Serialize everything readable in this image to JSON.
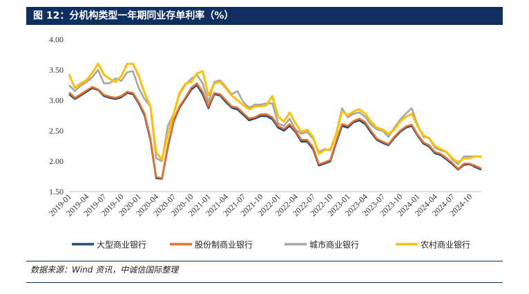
{
  "header": {
    "title": "图 12：分机构类型一年期同业存单利率（%）"
  },
  "footer": {
    "source": "数据来源：Wind 资讯，中诚信国际整理"
  },
  "chart_data": {
    "type": "line",
    "title": "分机构类型一年期同业存单利率（%）",
    "ylim": [
      1.5,
      4.0
    ],
    "yticks": [
      "4.00",
      "3.50",
      "3.00",
      "2.50",
      "2.00",
      "1.50"
    ],
    "ytick_values": [
      4.0,
      3.5,
      3.0,
      2.5,
      2.0,
      1.5
    ],
    "xtick_labels": [
      "2019-01",
      "2019-04",
      "2019-07",
      "2019-10",
      "2020-01",
      "2020-04",
      "2020-07",
      "2020-10",
      "2021-01",
      "2021-04",
      "2021-07",
      "2021-10",
      "2022-01",
      "2022-04",
      "2022-07",
      "2022-10",
      "2023-01",
      "2023-04",
      "2023-07",
      "2023-10",
      "2024-01",
      "2024-04",
      "2024-07",
      "2024-10"
    ],
    "n_points": 72,
    "series": [
      {
        "name": "大型商业银行",
        "color": "#1f4e79",
        "values": [
          3.1,
          3.02,
          3.08,
          3.14,
          3.2,
          3.17,
          3.07,
          3.04,
          3.02,
          3.05,
          3.12,
          3.1,
          2.95,
          2.75,
          2.35,
          1.72,
          1.71,
          2.22,
          2.65,
          2.88,
          3.02,
          3.17,
          3.25,
          3.1,
          2.87,
          3.1,
          3.08,
          2.97,
          2.88,
          2.85,
          2.76,
          2.67,
          2.7,
          2.74,
          2.74,
          2.69,
          2.55,
          2.5,
          2.58,
          2.48,
          2.32,
          2.32,
          2.2,
          1.93,
          1.96,
          2.0,
          2.3,
          2.58,
          2.55,
          2.64,
          2.67,
          2.61,
          2.47,
          2.35,
          2.3,
          2.26,
          2.38,
          2.48,
          2.55,
          2.58,
          2.42,
          2.29,
          2.24,
          2.13,
          2.1,
          2.03,
          1.95,
          1.86,
          1.94,
          1.95,
          1.9,
          1.86
        ]
      },
      {
        "name": "股份制商业银行",
        "color": "#e8702a",
        "values": [
          3.13,
          3.04,
          3.1,
          3.16,
          3.22,
          3.18,
          3.09,
          3.06,
          3.04,
          3.07,
          3.14,
          3.12,
          2.97,
          2.78,
          2.38,
          1.74,
          1.72,
          2.25,
          2.67,
          2.9,
          3.04,
          3.2,
          3.28,
          3.14,
          2.9,
          3.12,
          3.1,
          3.0,
          2.9,
          2.88,
          2.79,
          2.7,
          2.72,
          2.77,
          2.77,
          2.72,
          2.58,
          2.53,
          2.61,
          2.5,
          2.35,
          2.35,
          2.23,
          1.95,
          1.98,
          2.02,
          2.33,
          2.61,
          2.58,
          2.66,
          2.7,
          2.64,
          2.5,
          2.37,
          2.32,
          2.28,
          2.4,
          2.5,
          2.57,
          2.6,
          2.44,
          2.31,
          2.26,
          2.15,
          2.12,
          2.05,
          1.97,
          1.87,
          1.96,
          1.96,
          1.92,
          1.88
        ]
      },
      {
        "name": "城市商业银行",
        "color": "#a6a6a6",
        "values": [
          3.25,
          3.15,
          3.24,
          3.3,
          3.38,
          3.5,
          3.28,
          3.28,
          3.36,
          3.32,
          3.46,
          3.48,
          3.2,
          3.02,
          2.9,
          2.05,
          2.0,
          2.58,
          2.77,
          3.1,
          3.25,
          3.35,
          3.42,
          3.28,
          2.97,
          3.3,
          3.33,
          3.22,
          3.1,
          3.15,
          2.97,
          2.88,
          2.93,
          2.93,
          2.95,
          2.95,
          2.62,
          2.58,
          2.7,
          2.52,
          2.45,
          2.48,
          2.37,
          2.15,
          2.2,
          2.18,
          2.45,
          2.87,
          2.72,
          2.78,
          2.8,
          2.73,
          2.6,
          2.52,
          2.5,
          2.4,
          2.55,
          2.68,
          2.78,
          2.87,
          2.6,
          2.4,
          2.38,
          2.22,
          2.18,
          2.15,
          2.03,
          1.95,
          2.08,
          2.08,
          2.08,
          2.07
        ]
      },
      {
        "name": "农村商业银行",
        "color": "#ffc000",
        "values": [
          3.43,
          3.2,
          3.28,
          3.33,
          3.45,
          3.6,
          3.42,
          3.35,
          3.3,
          3.4,
          3.6,
          3.6,
          3.4,
          3.12,
          2.9,
          2.15,
          2.02,
          2.45,
          2.77,
          3.12,
          3.27,
          3.3,
          3.44,
          3.48,
          3.08,
          3.28,
          3.3,
          3.2,
          3.08,
          3.0,
          2.92,
          2.85,
          2.9,
          2.9,
          2.92,
          3.07,
          2.73,
          2.65,
          2.8,
          2.62,
          2.48,
          2.52,
          2.4,
          2.12,
          2.18,
          2.2,
          2.45,
          2.82,
          2.75,
          2.82,
          2.85,
          2.78,
          2.65,
          2.55,
          2.52,
          2.45,
          2.52,
          2.65,
          2.73,
          2.78,
          2.58,
          2.42,
          2.38,
          2.25,
          2.2,
          2.15,
          2.05,
          1.98,
          2.05,
          2.05,
          2.08,
          2.08
        ]
      }
    ],
    "legend_position": "bottom"
  }
}
